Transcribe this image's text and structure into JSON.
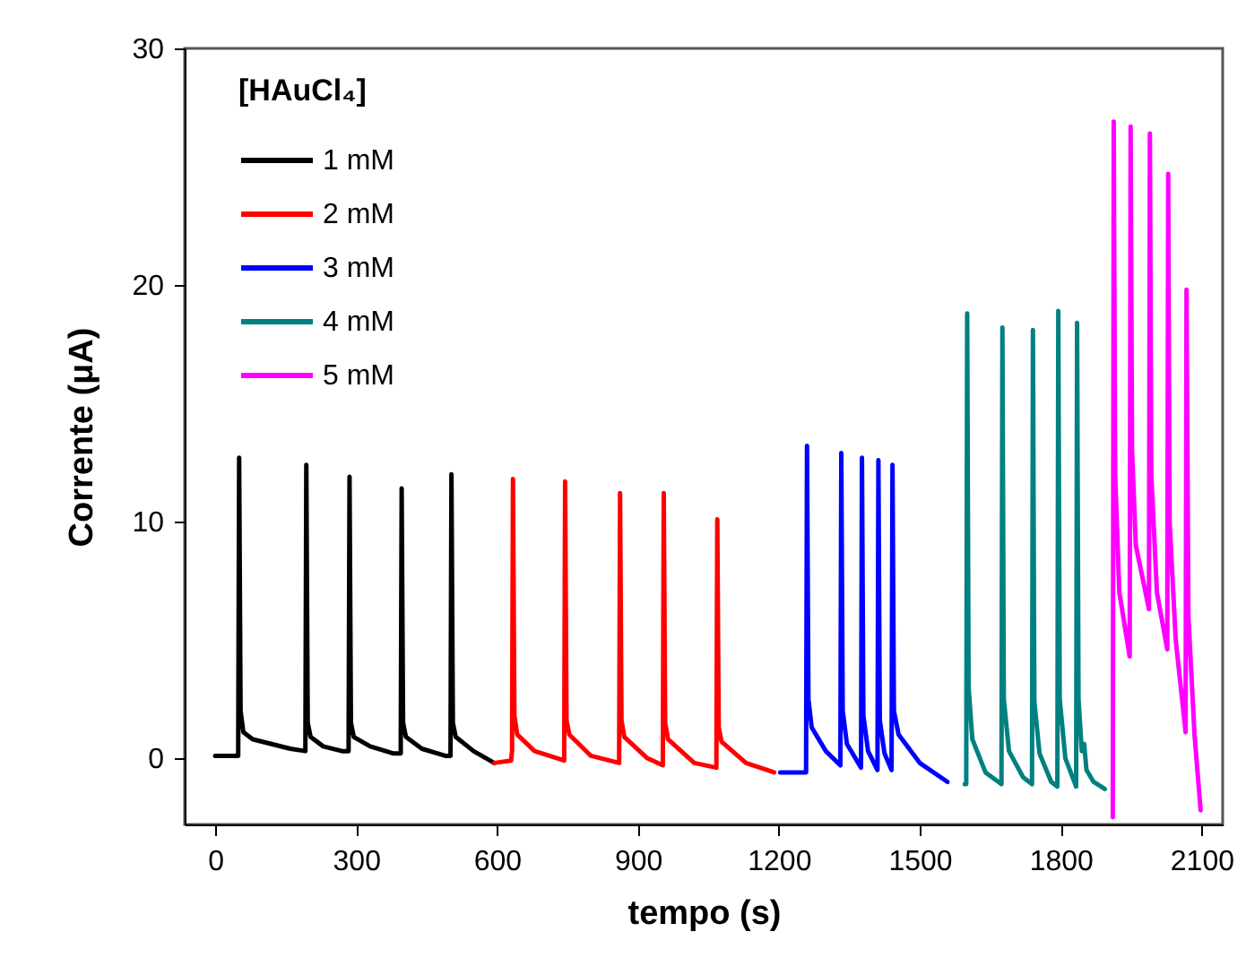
{
  "chart_data": {
    "type": "line",
    "xlabel": "tempo (s)",
    "ylabel": "Corrente (μA)",
    "legend_title": "[HAuCl₄]",
    "legend": "top left",
    "xlim": [
      -65,
      2145
    ],
    "ylim": [
      -2.8,
      30
    ],
    "xticks": [
      0,
      300,
      600,
      900,
      1200,
      1500,
      1800,
      2100
    ],
    "yticks": [
      0,
      10,
      20,
      30
    ],
    "series": [
      {
        "name": "1 mM",
        "color": "#000000",
        "x": [
          0,
          49,
          51,
          54,
          60,
          80,
          120,
          160,
          192,
          194,
          197,
          203,
          230,
          270,
          284,
          286,
          289,
          295,
          330,
          380,
          395,
          397,
          400,
          406,
          440,
          490,
          501,
          503,
          506,
          512,
          550,
          594
        ],
        "values": [
          0.1,
          0.1,
          12.7,
          2.0,
          1.1,
          0.8,
          0.6,
          0.4,
          0.3,
          12.4,
          1.5,
          0.9,
          0.5,
          0.3,
          0.3,
          11.9,
          1.5,
          0.9,
          0.5,
          0.2,
          0.2,
          11.4,
          1.5,
          0.9,
          0.4,
          0.1,
          0.1,
          12.0,
          1.5,
          0.9,
          0.3,
          -0.2
        ]
      },
      {
        "name": "2 mM",
        "color": "#ff0000",
        "x": [
          594,
          630,
          632,
          634,
          637,
          643,
          680,
          743,
          745,
          748,
          754,
          800,
          860,
          862,
          865,
          871,
          920,
          953,
          955,
          958,
          964,
          1020,
          1067,
          1069,
          1072,
          1078,
          1130,
          1190
        ],
        "values": [
          -0.2,
          -0.1,
          0.3,
          11.8,
          1.8,
          1.0,
          0.3,
          -0.1,
          11.7,
          1.6,
          1.0,
          0.1,
          -0.2,
          11.2,
          1.6,
          0.9,
          0.0,
          -0.3,
          11.2,
          1.5,
          0.8,
          -0.2,
          -0.4,
          10.1,
          1.3,
          0.7,
          -0.2,
          -0.6
        ]
      },
      {
        "name": "3 mM",
        "color": "#0000ff",
        "x": [
          1203,
          1258,
          1260,
          1263,
          1270,
          1300,
          1331,
          1333,
          1336,
          1345,
          1375,
          1377,
          1380,
          1390,
          1410,
          1412,
          1415,
          1425,
          1440,
          1442,
          1445,
          1455,
          1500,
          1559
        ],
        "values": [
          -0.6,
          -0.6,
          13.2,
          2.5,
          1.3,
          0.3,
          -0.3,
          12.9,
          2.0,
          0.6,
          -0.4,
          12.7,
          1.8,
          0.3,
          -0.5,
          12.6,
          1.6,
          0.2,
          -0.5,
          12.4,
          2.0,
          1.0,
          -0.2,
          -1.0
        ]
      },
      {
        "name": "4 mM",
        "color": "#008080",
        "x": [
          1596,
          1599,
          1601,
          1604,
          1612,
          1640,
          1674,
          1676,
          1679,
          1690,
          1720,
          1739,
          1741,
          1744,
          1755,
          1780,
          1793,
          1795,
          1798,
          1810,
          1833,
          1835,
          1838,
          1845,
          1850,
          1855,
          1870,
          1894
        ],
        "values": [
          -1.1,
          -1.1,
          18.8,
          3.0,
          0.8,
          -0.6,
          -1.1,
          18.2,
          2.5,
          0.3,
          -0.8,
          -1.1,
          18.1,
          2.4,
          0.2,
          -1.0,
          -1.2,
          18.9,
          2.5,
          0.0,
          -1.2,
          18.4,
          2.5,
          0.3,
          0.6,
          -0.5,
          -1.0,
          -1.3
        ]
      },
      {
        "name": "5 mM",
        "color": "#ff00ff",
        "x": [
          1911,
          1913,
          1916,
          1925,
          1947,
          1949,
          1952,
          1960,
          1988,
          1990,
          1993,
          2005,
          2027,
          2029,
          2032,
          2045,
          2066,
          2068,
          2072,
          2085,
          2098
        ],
        "values": [
          -2.5,
          26.9,
          12,
          7,
          4.3,
          26.7,
          13,
          9,
          6.3,
          26.4,
          12,
          7,
          4.6,
          24.7,
          10,
          5,
          1.1,
          19.8,
          6,
          1,
          -2.2
        ]
      }
    ]
  }
}
